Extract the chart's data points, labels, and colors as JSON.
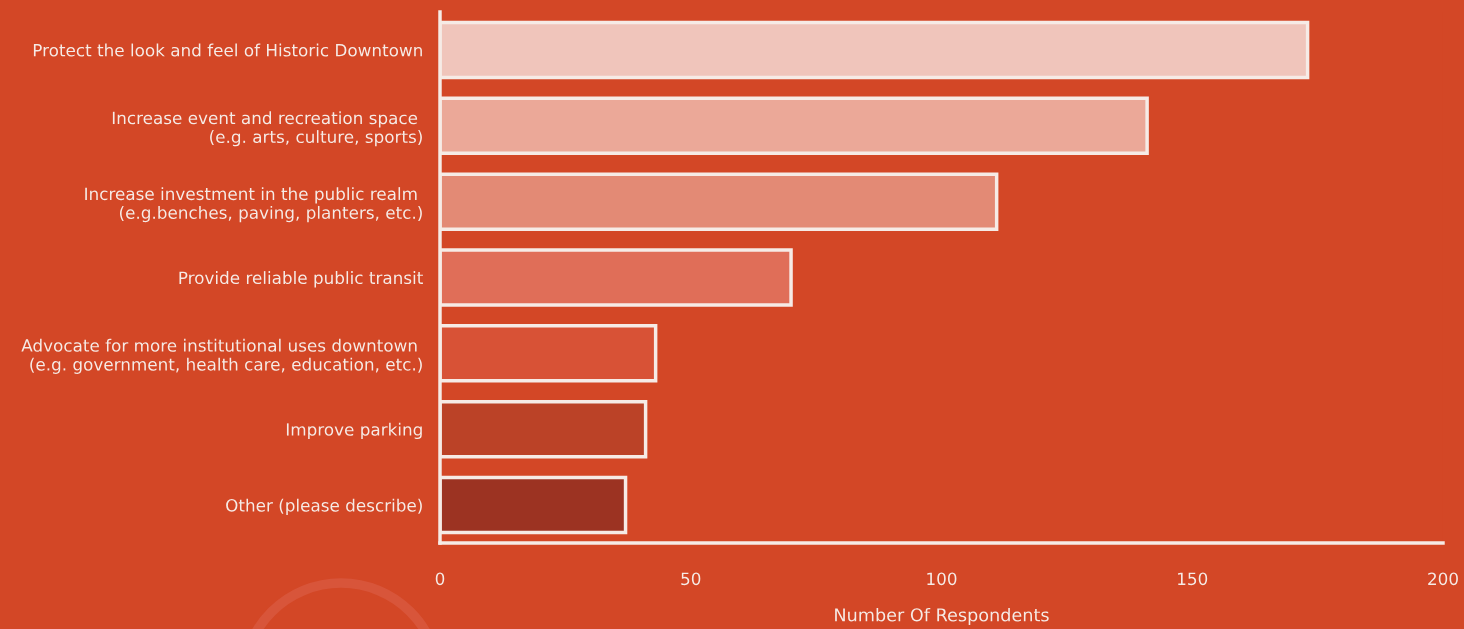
{
  "chart_data": {
    "type": "bar",
    "orientation": "horizontal",
    "xlabel": "Number Of Respondents",
    "categories": [
      "Protect the look and feel of Historic Downtown",
      "Increase event and recreation space \n(e.g. arts, culture, sports)",
      "Increase investment in the public realm \n(e.g.benches, paving, planters, etc.)",
      "Provide reliable public transit",
      "Advocate for more institutional uses downtown \n(e.g. government, health care, education, etc.)",
      "Improve parking",
      "Other (please describe)"
    ],
    "values": [
      173,
      141,
      111,
      70,
      43,
      41,
      37
    ],
    "colors": [
      "#f0c5bb",
      "#eba898",
      "#e38a75",
      "#e06e58",
      "#d85236",
      "#bb4227",
      "#9c3322"
    ],
    "xlim": [
      0,
      200
    ],
    "xticks": [
      0,
      50,
      100,
      150,
      200
    ]
  }
}
